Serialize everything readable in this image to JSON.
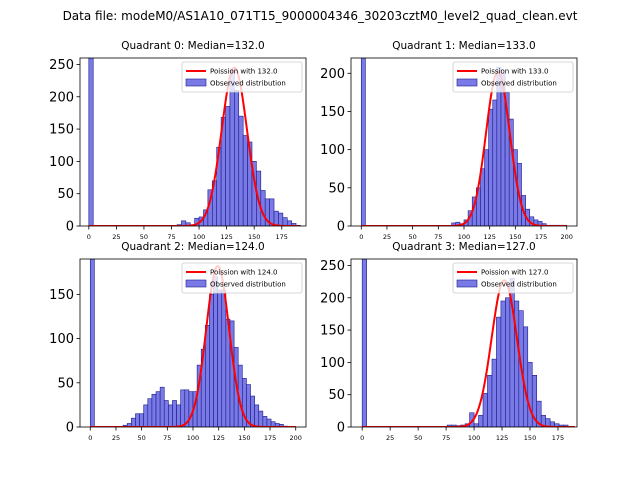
{
  "suptitle": "Data file: modeM0/AS1A10_071T15_9000004346_30203cztM0_level2_quad_clean.evt",
  "colors": {
    "poisson": "#ff0000",
    "bar_fill": "#7a7ae6",
    "bar_edge": "#1a1a8c"
  },
  "chart_data": [
    {
      "type": "bar",
      "title": "Quadrant 0: Median=132.0",
      "xlabel": "",
      "ylabel": "",
      "xlim": [
        -8,
        197
      ],
      "ylim": [
        0,
        260
      ],
      "xticks": [
        0,
        25,
        50,
        75,
        100,
        125,
        150,
        175
      ],
      "xtick_labels": [
        "0",
        "25",
        "50",
        "75",
        "100",
        "125",
        "150",
        "175"
      ],
      "yticks": [
        0,
        50,
        100,
        150,
        200,
        250
      ],
      "ytick_labels": [
        "0",
        "50",
        "100",
        "150",
        "200",
        "250"
      ],
      "bin_width": 4,
      "bins": [
        [
          0,
          260
        ],
        [
          60,
          1
        ],
        [
          64,
          1
        ],
        [
          68,
          1
        ],
        [
          72,
          1
        ],
        [
          76,
          1
        ],
        [
          80,
          2
        ],
        [
          84,
          8
        ],
        [
          88,
          5
        ],
        [
          92,
          2
        ],
        [
          96,
          12
        ],
        [
          100,
          14
        ],
        [
          104,
          25
        ],
        [
          108,
          56
        ],
        [
          112,
          70
        ],
        [
          116,
          122
        ],
        [
          120,
          168
        ],
        [
          124,
          185
        ],
        [
          128,
          240
        ],
        [
          132,
          210
        ],
        [
          136,
          170
        ],
        [
          140,
          140
        ],
        [
          144,
          130
        ],
        [
          148,
          100
        ],
        [
          152,
          85
        ],
        [
          156,
          55
        ],
        [
          160,
          42
        ],
        [
          164,
          42
        ],
        [
          168,
          23
        ],
        [
          172,
          20
        ],
        [
          176,
          13
        ],
        [
          180,
          8
        ],
        [
          184,
          4
        ],
        [
          188,
          1
        ]
      ],
      "poisson": {
        "mean": 132.0,
        "label": "Poission with 132.0",
        "peak": 245,
        "sigma": 11.5,
        "xmin": 0,
        "xmax": 190
      },
      "legend": [
        "Poission with 132.0",
        "Observed distribution"
      ],
      "legend_position": "upper right"
    },
    {
      "type": "bar",
      "title": "Quadrant 1: Median=133.0",
      "xlabel": "",
      "ylabel": "",
      "xlim": [
        -10,
        210
      ],
      "ylim": [
        0,
        220
      ],
      "xticks": [
        0,
        25,
        50,
        75,
        100,
        125,
        150,
        175,
        200
      ],
      "xtick_labels": [
        "0",
        "25",
        "50",
        "75",
        "100",
        "125",
        "150",
        "175",
        "200"
      ],
      "yticks": [
        0,
        50,
        100,
        150,
        200
      ],
      "ytick_labels": [
        "0",
        "50",
        "100",
        "150",
        "200"
      ],
      "bin_width": 4,
      "bins": [
        [
          0,
          220
        ],
        [
          88,
          4
        ],
        [
          92,
          5
        ],
        [
          96,
          3
        ],
        [
          100,
          8
        ],
        [
          104,
          20
        ],
        [
          108,
          38
        ],
        [
          112,
          50
        ],
        [
          116,
          75
        ],
        [
          120,
          100
        ],
        [
          124,
          153
        ],
        [
          128,
          165
        ],
        [
          132,
          208
        ],
        [
          136,
          200
        ],
        [
          140,
          175
        ],
        [
          144,
          140
        ],
        [
          148,
          100
        ],
        [
          152,
          82
        ],
        [
          156,
          40
        ],
        [
          160,
          22
        ],
        [
          164,
          12
        ],
        [
          168,
          8
        ],
        [
          172,
          6
        ],
        [
          176,
          3
        ],
        [
          180,
          1
        ],
        [
          184,
          1
        ],
        [
          188,
          1
        ],
        [
          192,
          1
        ],
        [
          196,
          1
        ]
      ],
      "poisson": {
        "mean": 133.0,
        "label": "Poission with 133.0",
        "peak": 202,
        "sigma": 11.5,
        "xmin": 0,
        "xmax": 200
      },
      "legend": [
        "Poission with 133.0",
        "Observed distribution"
      ],
      "legend_position": "upper right"
    },
    {
      "type": "bar",
      "title": "Quadrant 2: Median=124.0",
      "xlabel": "",
      "ylabel": "",
      "xlim": [
        -10,
        210
      ],
      "ylim": [
        0,
        190
      ],
      "xticks": [
        0,
        25,
        50,
        75,
        100,
        125,
        150,
        175,
        200
      ],
      "xtick_labels": [
        "0",
        "25",
        "50",
        "75",
        "100",
        "125",
        "150",
        "175",
        "200"
      ],
      "yticks": [
        0,
        50,
        100,
        150
      ],
      "ytick_labels": [
        "0",
        "50",
        "100",
        "150"
      ],
      "bin_width": 4,
      "bins": [
        [
          0,
          190
        ],
        [
          32,
          2
        ],
        [
          36,
          4
        ],
        [
          40,
          10
        ],
        [
          44,
          15
        ],
        [
          48,
          15
        ],
        [
          52,
          25
        ],
        [
          56,
          32
        ],
        [
          60,
          37
        ],
        [
          64,
          40
        ],
        [
          68,
          45
        ],
        [
          72,
          30
        ],
        [
          76,
          25
        ],
        [
          80,
          30
        ],
        [
          84,
          25
        ],
        [
          88,
          42
        ],
        [
          92,
          42
        ],
        [
          96,
          40
        ],
        [
          100,
          40
        ],
        [
          104,
          70
        ],
        [
          108,
          88
        ],
        [
          112,
          115
        ],
        [
          116,
          150
        ],
        [
          120,
          170
        ],
        [
          124,
          155
        ],
        [
          128,
          155
        ],
        [
          132,
          122
        ],
        [
          136,
          120
        ],
        [
          140,
          90
        ],
        [
          144,
          70
        ],
        [
          148,
          55
        ],
        [
          152,
          48
        ],
        [
          156,
          35
        ],
        [
          160,
          25
        ],
        [
          164,
          18
        ],
        [
          168,
          12
        ],
        [
          172,
          9
        ],
        [
          176,
          6
        ],
        [
          180,
          4
        ],
        [
          184,
          3
        ],
        [
          188,
          1
        ]
      ],
      "poisson": {
        "mean": 124.0,
        "label": "Poission with 124.0",
        "peak": 182,
        "sigma": 11.2,
        "xmin": 0,
        "xmax": 200
      },
      "legend": [
        "Poission with 124.0",
        "Observed distribution"
      ],
      "legend_position": "upper right"
    },
    {
      "type": "bar",
      "title": "Quadrant 3: Median=127.0",
      "xlabel": "",
      "ylabel": "",
      "xlim": [
        -10,
        192
      ],
      "ylim": [
        0,
        260
      ],
      "xticks": [
        0,
        25,
        50,
        75,
        100,
        125,
        150,
        175
      ],
      "xtick_labels": [
        "0",
        "25",
        "50",
        "75",
        "100",
        "125",
        "150",
        "175"
      ],
      "yticks": [
        0,
        50,
        100,
        150,
        200,
        250
      ],
      "ytick_labels": [
        "0",
        "50",
        "100",
        "150",
        "200",
        "250"
      ],
      "bin_width": 4,
      "bins": [
        [
          0,
          260
        ],
        [
          76,
          3
        ],
        [
          80,
          3
        ],
        [
          84,
          2
        ],
        [
          88,
          3
        ],
        [
          92,
          5
        ],
        [
          96,
          22
        ],
        [
          100,
          5
        ],
        [
          104,
          18
        ],
        [
          108,
          52
        ],
        [
          112,
          80
        ],
        [
          116,
          105
        ],
        [
          120,
          170
        ],
        [
          124,
          195
        ],
        [
          128,
          200
        ],
        [
          132,
          230
        ],
        [
          136,
          195
        ],
        [
          140,
          180
        ],
        [
          144,
          155
        ],
        [
          148,
          100
        ],
        [
          152,
          80
        ],
        [
          156,
          40
        ],
        [
          160,
          18
        ],
        [
          164,
          13
        ],
        [
          168,
          8
        ],
        [
          172,
          5
        ],
        [
          176,
          3
        ],
        [
          180,
          3
        ]
      ],
      "poisson": {
        "mean": 127.0,
        "label": "Poission with 127.0",
        "peak": 227,
        "sigma": 11.3,
        "xmin": 0,
        "xmax": 190
      },
      "legend": [
        "Poission with 127.0",
        "Observed distribution"
      ],
      "legend_position": "upper right"
    }
  ]
}
